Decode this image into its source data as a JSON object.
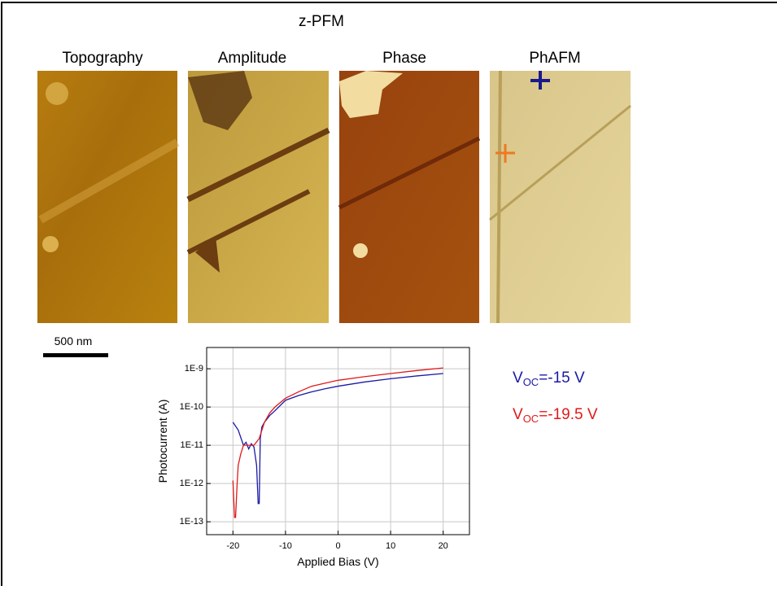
{
  "header": "z-PFM",
  "panels": [
    "Topography",
    "Amplitude",
    "Phase",
    "PhAFM"
  ],
  "scale_bar": "500 nm",
  "chart_data": {
    "type": "line",
    "x_label": "Applied Bias (V)",
    "y_label": "Photocurrent (A)",
    "xlim": [
      -25,
      25
    ],
    "xticks": [
      -20,
      -10,
      0,
      10,
      20
    ],
    "ylim": [
      4.6e-14,
      3.6e-09
    ],
    "log_y": true,
    "grid": true,
    "yticks": [
      {
        "value": 1e-13,
        "label": "1E-13"
      },
      {
        "value": 1e-12,
        "label": "1E-12"
      },
      {
        "value": 1e-11,
        "label": "1E-11"
      },
      {
        "value": 1e-10,
        "label": "1E-10"
      },
      {
        "value": 1e-09,
        "label": "1E-9"
      }
    ],
    "series": [
      {
        "name": {
          "main": "V",
          "sub": "OC",
          "rest": "=-15 V"
        },
        "color": "#1a1aa6",
        "x": [
          -20,
          -19,
          -18,
          -17.5,
          -17,
          -16.5,
          -16,
          -15.5,
          -15.2,
          -15,
          -14.8,
          -14.5,
          -14,
          -13,
          -12,
          -10,
          -7.5,
          -5,
          -2.5,
          0,
          5,
          10,
          15,
          20
        ],
        "values": [
          4e-11,
          2.5e-11,
          1e-11,
          1.2e-11,
          8e-12,
          1.1e-11,
          9e-12,
          3e-12,
          3e-13,
          3e-13,
          1.5e-11,
          3e-11,
          4e-11,
          6e-11,
          8e-11,
          1.5e-10,
          2e-10,
          2.5e-10,
          3e-10,
          3.5e-10,
          4.5e-10,
          5.5e-10,
          6.5e-10,
          7.5e-10
        ]
      },
      {
        "name": {
          "main": "V",
          "sub": "OC",
          "rest": "=-19.5 V"
        },
        "color": "#e01a1a",
        "x": [
          -20,
          -19.7,
          -19.5,
          -19.2,
          -19,
          -18.5,
          -18,
          -17,
          -16,
          -15,
          -14,
          -13,
          -12,
          -10,
          -7.5,
          -5,
          -2.5,
          0,
          5,
          10,
          15,
          20
        ],
        "values": [
          1.2e-12,
          1.3e-13,
          1.3e-13,
          1e-12,
          3e-12,
          6e-12,
          1e-11,
          1e-11,
          1e-11,
          1.5e-11,
          4e-11,
          7e-11,
          1e-10,
          1.7e-10,
          2.5e-10,
          3.5e-10,
          4.2e-10,
          5e-10,
          6.2e-10,
          7.5e-10,
          9e-10,
          1.05e-09
        ]
      }
    ]
  }
}
